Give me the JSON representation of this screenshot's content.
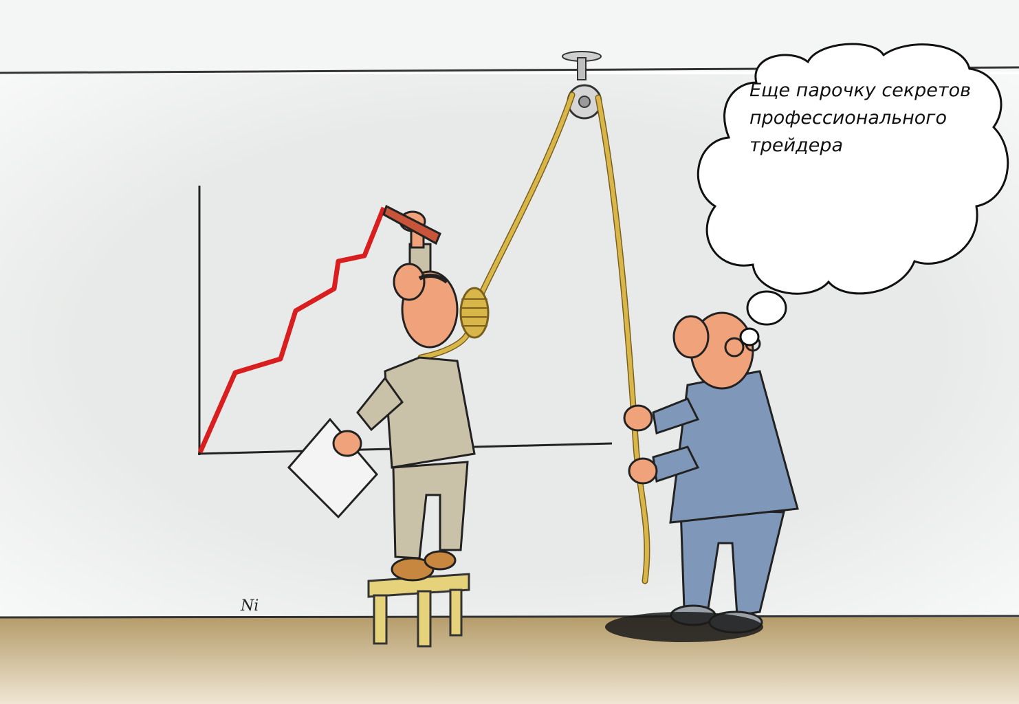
{
  "thought_bubble": {
    "lines": [
      "Еще парочку секретов",
      "профессионального",
      "трейдера"
    ]
  },
  "artist_signature": "Ni",
  "colors": {
    "wall": "#e9ebea",
    "floor": "#c8b48a",
    "chart_line": "#d81e1e",
    "rope": "#d8b64a",
    "beige_suit": "#c9c2a8",
    "blue_suit": "#7f97b8",
    "skin": "#f0a27a",
    "stool": "#e7d27c"
  }
}
